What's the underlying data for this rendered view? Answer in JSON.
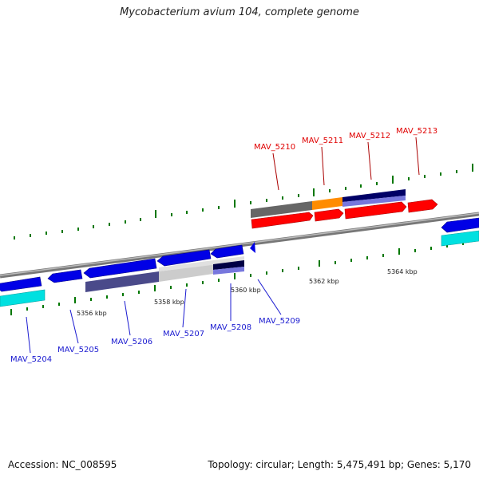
{
  "header": {
    "title": "Mycobacterium avium 104, complete genome"
  },
  "footer": {
    "accession": "Accession: NC_008595",
    "topology": "Topology: circular; Length: 5,475,491 bp; Genes: 5,170"
  },
  "ruler": {
    "kbp_labels": [
      "5356 kbp",
      "5358 kbp",
      "5360 kbp",
      "5362 kbp",
      "5364 kbp"
    ]
  },
  "genes": {
    "forward": [
      "MAV_5210",
      "MAV_5211",
      "MAV_5212",
      "MAV_5213"
    ],
    "reverse": [
      "MAV_5204",
      "MAV_5205",
      "MAV_5206",
      "MAV_5207",
      "MAV_5208",
      "MAV_5209"
    ]
  },
  "colors": {
    "forward_label": "#e00000",
    "reverse_label": "#1a1ad0",
    "forward_gene": "#ff0000",
    "reverse_gene": "#0000e6",
    "tick": "#007700",
    "backbone": "#888888",
    "cds_forward_dark": "#000066",
    "cds_forward_light": "#7777dd",
    "cds_reverse": "#4a4a8a",
    "rna": "#00e0e0",
    "orange": "#ff8c00",
    "gray_block": "#666666",
    "light_gray": "#cccccc"
  }
}
